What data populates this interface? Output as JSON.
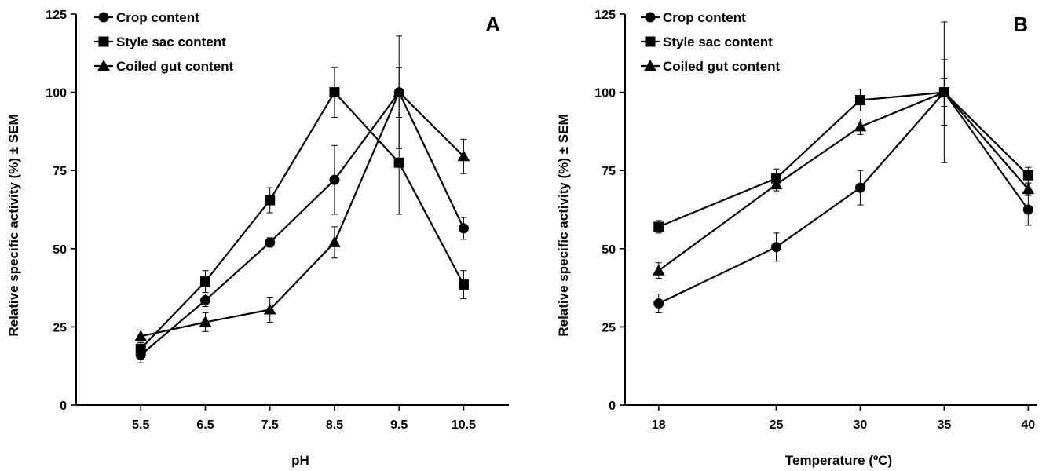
{
  "chart_data": [
    {
      "type": "line",
      "panel_label": "A",
      "xlabel": "pH",
      "ylabel": "Relative specific activity (%) ± SEM",
      "categories": [
        "5.5",
        "6.5",
        "7.5",
        "8.5",
        "9.5",
        "10.5"
      ],
      "x": [
        5.5,
        6.5,
        7.5,
        8.5,
        9.5,
        10.5
      ],
      "xlim": [
        4.5,
        11.2
      ],
      "ylim": [
        0,
        125
      ],
      "yticks": [
        0,
        25,
        50,
        75,
        100,
        125
      ],
      "grid": false,
      "legend_position": "top-left",
      "series": [
        {
          "name": "Crop content",
          "marker": "circle",
          "values": [
            16,
            33.5,
            52,
            72,
            100,
            56.5
          ],
          "errors": [
            2.5,
            2,
            1.5,
            11,
            18,
            3.5
          ]
        },
        {
          "name": "Style sac content",
          "marker": "square",
          "values": [
            18,
            39.5,
            65.5,
            100,
            77.5,
            38.5
          ],
          "errors": [
            2,
            3.5,
            4,
            8,
            16.5,
            4.5
          ]
        },
        {
          "name": "Coiled gut content",
          "marker": "triangle",
          "values": [
            22,
            26.5,
            30.5,
            52,
            100,
            79.5
          ],
          "errors": [
            2,
            3,
            4,
            5,
            8,
            5.5
          ]
        }
      ]
    },
    {
      "type": "line",
      "panel_label": "B",
      "xlabel": "Temperature (ºC)",
      "ylabel": "Relative specific activity (%) ± SEM",
      "categories": [
        "18",
        "25",
        "30",
        "35",
        "40"
      ],
      "x": [
        18,
        25,
        30,
        35,
        40
      ],
      "xlim": [
        16,
        40.5
      ],
      "ylim": [
        0,
        125
      ],
      "yticks": [
        0,
        25,
        50,
        75,
        100,
        125
      ],
      "grid": false,
      "legend_position": "top-left",
      "series": [
        {
          "name": "Crop content",
          "marker": "circle",
          "values": [
            32.5,
            50.5,
            69.5,
            100,
            62.5
          ],
          "errors": [
            3,
            4.5,
            5.5,
            10.5,
            5
          ]
        },
        {
          "name": "Style sac content",
          "marker": "square",
          "values": [
            57,
            72.5,
            97.5,
            100,
            73.5
          ],
          "errors": [
            2,
            3,
            3.5,
            22.5,
            2.5
          ]
        },
        {
          "name": "Coiled gut content",
          "marker": "triangle",
          "values": [
            43,
            70.5,
            89,
            100,
            69
          ],
          "errors": [
            2.5,
            2,
            2.5,
            4.5,
            2
          ]
        }
      ]
    }
  ]
}
